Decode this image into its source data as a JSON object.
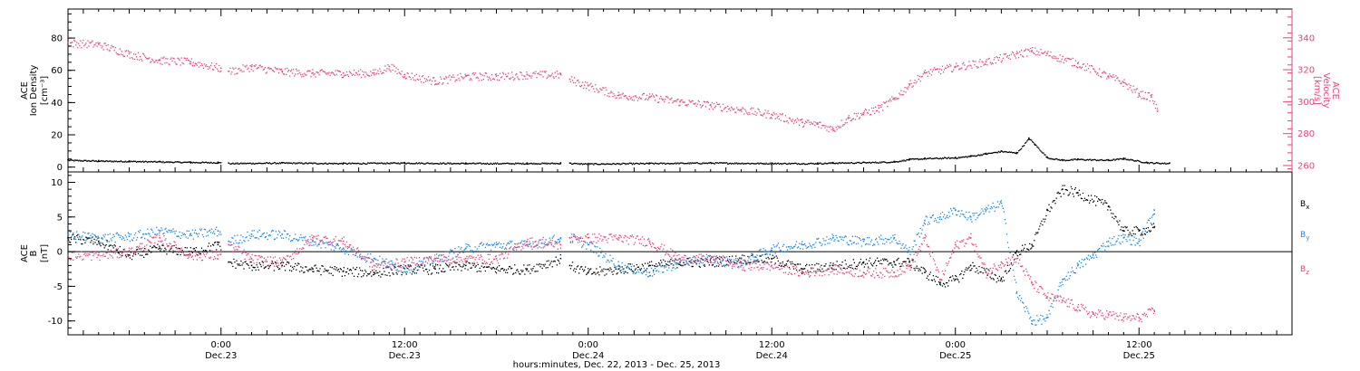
{
  "x_axis": {
    "title": "hours:minutes, Dec. 22, 2013 - Dec. 25, 2013",
    "ticks": [
      {
        "time": "0:00",
        "date": "Dec.23",
        "hours": 24
      },
      {
        "time": "12:00",
        "date": "Dec.23",
        "hours": 36
      },
      {
        "time": "0:00",
        "date": "Dec.24",
        "hours": 48
      },
      {
        "time": "12:00",
        "date": "Dec.24",
        "hours": 60
      },
      {
        "time": "0:00",
        "date": "Dec.25",
        "hours": 72
      },
      {
        "time": "12:00",
        "date": "Dec.25",
        "hours": 84
      }
    ],
    "range_hours": [
      14,
      94
    ]
  },
  "colors": {
    "black": "#000000",
    "blue": "#1e88e5",
    "pink": "#e8457a"
  },
  "chart_data": [
    {
      "type": "scatter",
      "panel": "top",
      "left_axis": {
        "label_lines": [
          "ACE",
          "Ion Density",
          "[cm⁻³]"
        ],
        "range": [
          -3,
          98
        ],
        "ticks": [
          0,
          20,
          40,
          60,
          80
        ]
      },
      "right_axis": {
        "label_lines": [
          "ACE",
          "Velocity",
          "[km/s]"
        ],
        "range": [
          256,
          358
        ],
        "ticks": [
          260,
          280,
          300,
          320,
          340
        ]
      },
      "series": [
        {
          "axis": "left",
          "color": "#000000",
          "points": [
            [
              14.0,
              4.5
            ],
            [
              16.0,
              4.0
            ],
            [
              18.0,
              3.8
            ],
            [
              20.0,
              3.5
            ],
            [
              22.0,
              3.2
            ],
            [
              23.8,
              3.0
            ],
            [
              24.5,
              2.5
            ],
            [
              28.0,
              2.8
            ],
            [
              32.0,
              2.5
            ],
            [
              36.0,
              2.8
            ],
            [
              40.0,
              2.5
            ],
            [
              44.0,
              2.5
            ],
            [
              46.2,
              2.6
            ],
            [
              46.8,
              2.5
            ],
            [
              48.0,
              2.2
            ],
            [
              52.0,
              2.5
            ],
            [
              56.0,
              2.8
            ],
            [
              60.0,
              2.5
            ],
            [
              63.0,
              2.5
            ],
            [
              64.0,
              2.8
            ],
            [
              66.0,
              3.0
            ],
            [
              68.0,
              3.5
            ],
            [
              69.0,
              5.0
            ],
            [
              70.0,
              5.5
            ],
            [
              72.0,
              6.0
            ],
            [
              73.0,
              7.0
            ],
            [
              74.0,
              8.5
            ],
            [
              75.0,
              10.0
            ],
            [
              76.0,
              9.0
            ],
            [
              76.8,
              18.0
            ],
            [
              77.2,
              14.0
            ],
            [
              78.0,
              6.0
            ],
            [
              79.0,
              4.5
            ],
            [
              80.0,
              5.0
            ],
            [
              82.0,
              4.5
            ],
            [
              83.0,
              5.5
            ],
            [
              84.5,
              3.0
            ],
            [
              86.0,
              2.5
            ]
          ]
        },
        {
          "axis": "right",
          "color": "#e8457a",
          "points": [
            [
              14.0,
              337
            ],
            [
              16.0,
              336
            ],
            [
              18.0,
              330
            ],
            [
              20.0,
              326
            ],
            [
              22.0,
              325
            ],
            [
              24.0,
              321
            ],
            [
              24.5,
              319
            ],
            [
              26.0,
              322
            ],
            [
              28.0,
              319
            ],
            [
              30.0,
              318
            ],
            [
              32.0,
              318
            ],
            [
              34.0,
              318
            ],
            [
              35.0,
              322
            ],
            [
              36.0,
              317
            ],
            [
              38.0,
              313
            ],
            [
              40.0,
              316
            ],
            [
              42.0,
              316
            ],
            [
              44.0,
              317
            ],
            [
              46.2,
              317
            ],
            [
              46.8,
              314
            ],
            [
              48.0,
              310
            ],
            [
              50.0,
              304
            ],
            [
              52.0,
              303
            ],
            [
              54.0,
              300
            ],
            [
              56.0,
              298
            ],
            [
              58.0,
              295
            ],
            [
              60.0,
              292
            ],
            [
              62.0,
              287
            ],
            [
              63.0,
              286
            ],
            [
              64.0,
              283
            ],
            [
              65.0,
              290
            ],
            [
              66.0,
              293
            ],
            [
              67.0,
              296
            ],
            [
              68.0,
              302
            ],
            [
              69.0,
              311
            ],
            [
              70.0,
              318
            ],
            [
              72.0,
              322
            ],
            [
              74.0,
              325
            ],
            [
              76.0,
              330
            ],
            [
              77.0,
              332
            ],
            [
              78.0,
              330
            ],
            [
              80.0,
              324
            ],
            [
              82.0,
              316
            ],
            [
              83.0,
              312
            ],
            [
              84.0,
              305
            ],
            [
              84.8,
              303
            ],
            [
              85.2,
              294
            ]
          ]
        }
      ],
      "gaps_hours": [
        [
          24.0,
          24.5
        ],
        [
          46.2,
          46.8
        ]
      ]
    },
    {
      "type": "scatter",
      "panel": "bottom",
      "left_axis": {
        "label_lines": [
          "ACE",
          "B",
          "[nT]"
        ],
        "range": [
          -12,
          11.5
        ],
        "ticks": [
          -10,
          -5,
          0,
          5,
          10
        ]
      },
      "series": [
        {
          "name": "Bx",
          "color": "#000000",
          "points": [
            [
              14.0,
              2.0
            ],
            [
              16.0,
              1.5
            ],
            [
              18.0,
              -0.5
            ],
            [
              20.0,
              0.5
            ],
            [
              22.0,
              0.0
            ],
            [
              23.8,
              1.0
            ],
            [
              24.5,
              -1.5
            ],
            [
              26.0,
              -2.0
            ],
            [
              28.0,
              -2.0
            ],
            [
              30.0,
              -2.5
            ],
            [
              32.0,
              -2.8
            ],
            [
              34.0,
              -3.0
            ],
            [
              36.0,
              -2.5
            ],
            [
              38.0,
              -2.5
            ],
            [
              40.0,
              -2.0
            ],
            [
              42.0,
              -2.5
            ],
            [
              44.0,
              -2.5
            ],
            [
              46.2,
              -1.0
            ],
            [
              46.8,
              -2.0
            ],
            [
              48.0,
              -3.0
            ],
            [
              50.0,
              -2.5
            ],
            [
              52.0,
              -2.0
            ],
            [
              54.0,
              -1.5
            ],
            [
              56.0,
              -1.5
            ],
            [
              58.0,
              -1.0
            ],
            [
              60.0,
              -1.0
            ],
            [
              62.0,
              -2.5
            ],
            [
              64.0,
              -2.0
            ],
            [
              66.0,
              -1.5
            ],
            [
              68.0,
              -1.5
            ],
            [
              69.0,
              -1.5
            ],
            [
              70.0,
              -3.0
            ],
            [
              71.0,
              -4.5
            ],
            [
              72.0,
              -4.0
            ],
            [
              73.0,
              -2.0
            ],
            [
              74.0,
              -3.0
            ],
            [
              75.0,
              -4.0
            ],
            [
              76.0,
              0.0
            ],
            [
              77.0,
              1.0
            ],
            [
              78.0,
              6.0
            ],
            [
              79.0,
              9.0
            ],
            [
              80.0,
              8.5
            ],
            [
              82.0,
              6.5
            ],
            [
              83.0,
              3.0
            ],
            [
              84.0,
              3.0
            ],
            [
              85.0,
              3.5
            ]
          ]
        },
        {
          "name": "By",
          "color": "#1e88e5",
          "points": [
            [
              14.0,
              2.5
            ],
            [
              16.0,
              2.0
            ],
            [
              18.0,
              2.2
            ],
            [
              20.0,
              3.0
            ],
            [
              22.0,
              2.5
            ],
            [
              23.8,
              3.0
            ],
            [
              24.5,
              1.5
            ],
            [
              26.0,
              2.5
            ],
            [
              28.0,
              2.5
            ],
            [
              30.0,
              1.5
            ],
            [
              32.0,
              0.5
            ],
            [
              34.0,
              -1.0
            ],
            [
              36.0,
              -2.5
            ],
            [
              38.0,
              -1.0
            ],
            [
              40.0,
              0.5
            ],
            [
              42.0,
              1.0
            ],
            [
              44.0,
              1.0
            ],
            [
              46.2,
              2.0
            ],
            [
              46.8,
              2.0
            ],
            [
              48.0,
              1.0
            ],
            [
              50.0,
              -2.0
            ],
            [
              52.0,
              -3.0
            ],
            [
              54.0,
              -1.5
            ],
            [
              56.0,
              -1.0
            ],
            [
              58.0,
              -1.5
            ],
            [
              60.0,
              0.5
            ],
            [
              62.0,
              1.0
            ],
            [
              64.0,
              2.0
            ],
            [
              66.0,
              1.5
            ],
            [
              68.0,
              2.0
            ],
            [
              69.0,
              0.0
            ],
            [
              70.0,
              4.5
            ],
            [
              71.0,
              5.0
            ],
            [
              72.0,
              6.0
            ],
            [
              73.0,
              5.0
            ],
            [
              74.0,
              6.0
            ],
            [
              75.0,
              7.0
            ],
            [
              76.0,
              -6.0
            ],
            [
              77.0,
              -10.0
            ],
            [
              78.0,
              -9.5
            ],
            [
              79.0,
              -4.0
            ],
            [
              80.0,
              -2.0
            ],
            [
              81.0,
              -0.5
            ],
            [
              82.0,
              1.5
            ],
            [
              83.0,
              2.0
            ],
            [
              84.0,
              1.5
            ],
            [
              85.0,
              6.0
            ]
          ]
        },
        {
          "name": "Bz",
          "color": "#e8457a",
          "points": [
            [
              14.0,
              -0.5
            ],
            [
              16.0,
              -0.5
            ],
            [
              18.0,
              0.0
            ],
            [
              20.0,
              2.0
            ],
            [
              22.0,
              -0.5
            ],
            [
              23.8,
              -0.5
            ],
            [
              24.5,
              1.0
            ],
            [
              26.0,
              -1.0
            ],
            [
              28.0,
              -1.5
            ],
            [
              30.0,
              2.0
            ],
            [
              32.0,
              1.5
            ],
            [
              34.0,
              -2.0
            ],
            [
              36.0,
              -1.5
            ],
            [
              38.0,
              -1.0
            ],
            [
              40.0,
              -1.0
            ],
            [
              42.0,
              -1.0
            ],
            [
              44.0,
              1.5
            ],
            [
              46.2,
              1.0
            ],
            [
              46.8,
              2.0
            ],
            [
              48.0,
              2.0
            ],
            [
              50.0,
              2.0
            ],
            [
              52.0,
              1.5
            ],
            [
              54.0,
              -1.0
            ],
            [
              56.0,
              -1.0
            ],
            [
              58.0,
              -2.0
            ],
            [
              60.0,
              -2.0
            ],
            [
              62.0,
              -3.0
            ],
            [
              64.0,
              -2.5
            ],
            [
              66.0,
              -3.0
            ],
            [
              68.0,
              -3.0
            ],
            [
              69.0,
              -2.0
            ],
            [
              70.0,
              2.0
            ],
            [
              71.0,
              -4.0
            ],
            [
              72.0,
              1.0
            ],
            [
              73.0,
              2.0
            ],
            [
              74.0,
              -3.0
            ],
            [
              75.0,
              -1.5
            ],
            [
              76.0,
              -1.0
            ],
            [
              77.0,
              -4.5
            ],
            [
              78.0,
              -6.5
            ],
            [
              79.0,
              -7.0
            ],
            [
              80.0,
              -8.0
            ],
            [
              81.0,
              -9.0
            ],
            [
              82.0,
              -9.0
            ],
            [
              83.0,
              -9.5
            ],
            [
              84.0,
              -9.5
            ],
            [
              85.0,
              -8.5
            ]
          ]
        }
      ],
      "gaps_hours": [
        [
          24.0,
          24.5
        ],
        [
          46.2,
          46.8
        ]
      ],
      "zero_line": true,
      "legend_position": "right"
    }
  ]
}
